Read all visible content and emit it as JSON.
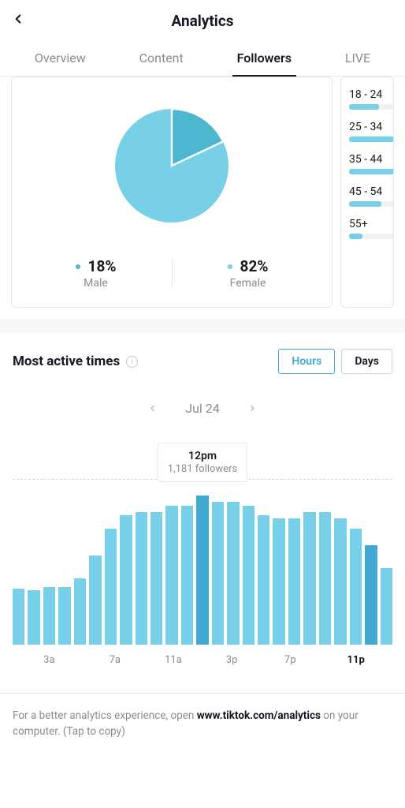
{
  "header": {
    "title": "Analytics"
  },
  "tabs": {
    "items": [
      "Overview",
      "Content",
      "Followers",
      "LIVE"
    ],
    "active_index": 2
  },
  "gender": {
    "type": "pie",
    "colors": {
      "male": "#4eb7d0",
      "female": "#78d0e8"
    },
    "male": {
      "percent_label": "18%",
      "label": "Male",
      "value": 18
    },
    "female": {
      "percent_label": "82%",
      "label": "Female",
      "value": 82
    }
  },
  "age": {
    "bar_color": "#78d0e8",
    "track_color": "#f1f1f2",
    "rows": [
      {
        "label": "18 - 24",
        "pct": 32
      },
      {
        "label": "25 - 34",
        "pct": 60
      },
      {
        "label": "35 - 44",
        "pct": 58
      },
      {
        "label": "45 - 54",
        "pct": 34
      },
      {
        "label": "55+",
        "pct": 14
      }
    ]
  },
  "active_times": {
    "title": "Most active times",
    "toggles": {
      "hours": "Hours",
      "days": "Days",
      "active": "hours"
    },
    "date_label": "Jul 24",
    "tooltip": {
      "time": "12pm",
      "value": "1,181 followers",
      "index": 12
    },
    "chart": {
      "type": "bar",
      "bar_color": "#78d0e8",
      "highlight_color": "#3fa9d4",
      "background_color": "#ffffff",
      "guideline_color": "#d9d9dd",
      "ylim": [
        0,
        100
      ],
      "bars": [
        34,
        33,
        35,
        35,
        40,
        54,
        70,
        78,
        80,
        80,
        84,
        84,
        90,
        86,
        86,
        84,
        78,
        76,
        76,
        80,
        80,
        76,
        70,
        60,
        46
      ],
      "highlight_indices": [
        12,
        23
      ],
      "x_ticks": [
        "3a",
        "7a",
        "11a",
        "3p",
        "7p",
        "11p"
      ],
      "x_bold_indices": [
        5
      ]
    }
  },
  "bottom_note": {
    "prefix": "For a better analytics experience, open ",
    "bold": "www.tiktok.com/analytics",
    "suffix": " on your computer. (Tap to copy)"
  }
}
